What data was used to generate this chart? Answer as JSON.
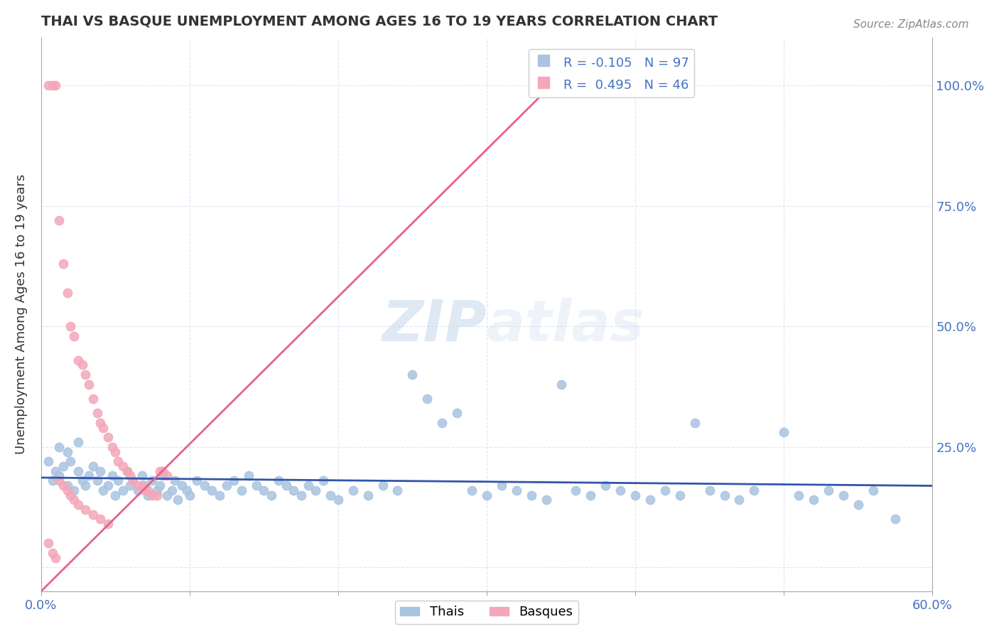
{
  "title": "THAI VS BASQUE UNEMPLOYMENT AMONG AGES 16 TO 19 YEARS CORRELATION CHART",
  "source": "Source: ZipAtlas.com",
  "ylabel": "Unemployment Among Ages 16 to 19 years",
  "yticks": [
    0.0,
    0.25,
    0.5,
    0.75,
    1.0
  ],
  "ytick_labels": [
    "",
    "25.0%",
    "50.0%",
    "75.0%",
    "100.0%"
  ],
  "xlim": [
    0.0,
    0.6
  ],
  "ylim": [
    -0.05,
    1.1
  ],
  "thai_color": "#a8c4e0",
  "basque_color": "#f4a7b9",
  "thai_line_color": "#3355aa",
  "basque_line_color": "#e8608a",
  "thai_R": -0.105,
  "thai_N": 97,
  "basque_R": 0.495,
  "basque_N": 46,
  "watermark_zip": "ZIP",
  "watermark_atlas": "atlas",
  "thai_points": [
    [
      0.005,
      0.22
    ],
    [
      0.008,
      0.18
    ],
    [
      0.01,
      0.2
    ],
    [
      0.012,
      0.19
    ],
    [
      0.015,
      0.21
    ],
    [
      0.018,
      0.17
    ],
    [
      0.02,
      0.22
    ],
    [
      0.022,
      0.16
    ],
    [
      0.025,
      0.2
    ],
    [
      0.028,
      0.18
    ],
    [
      0.03,
      0.17
    ],
    [
      0.032,
      0.19
    ],
    [
      0.035,
      0.21
    ],
    [
      0.038,
      0.18
    ],
    [
      0.04,
      0.2
    ],
    [
      0.042,
      0.16
    ],
    [
      0.045,
      0.17
    ],
    [
      0.048,
      0.19
    ],
    [
      0.05,
      0.15
    ],
    [
      0.052,
      0.18
    ],
    [
      0.055,
      0.16
    ],
    [
      0.058,
      0.2
    ],
    [
      0.06,
      0.17
    ],
    [
      0.062,
      0.18
    ],
    [
      0.065,
      0.16
    ],
    [
      0.068,
      0.19
    ],
    [
      0.07,
      0.17
    ],
    [
      0.072,
      0.15
    ],
    [
      0.075,
      0.18
    ],
    [
      0.078,
      0.16
    ],
    [
      0.08,
      0.17
    ],
    [
      0.082,
      0.19
    ],
    [
      0.085,
      0.15
    ],
    [
      0.088,
      0.16
    ],
    [
      0.09,
      0.18
    ],
    [
      0.092,
      0.14
    ],
    [
      0.095,
      0.17
    ],
    [
      0.098,
      0.16
    ],
    [
      0.1,
      0.15
    ],
    [
      0.105,
      0.18
    ],
    [
      0.11,
      0.17
    ],
    [
      0.115,
      0.16
    ],
    [
      0.12,
      0.15
    ],
    [
      0.125,
      0.17
    ],
    [
      0.13,
      0.18
    ],
    [
      0.135,
      0.16
    ],
    [
      0.14,
      0.19
    ],
    [
      0.145,
      0.17
    ],
    [
      0.15,
      0.16
    ],
    [
      0.155,
      0.15
    ],
    [
      0.16,
      0.18
    ],
    [
      0.165,
      0.17
    ],
    [
      0.17,
      0.16
    ],
    [
      0.175,
      0.15
    ],
    [
      0.18,
      0.17
    ],
    [
      0.185,
      0.16
    ],
    [
      0.19,
      0.18
    ],
    [
      0.195,
      0.15
    ],
    [
      0.2,
      0.14
    ],
    [
      0.21,
      0.16
    ],
    [
      0.22,
      0.15
    ],
    [
      0.23,
      0.17
    ],
    [
      0.24,
      0.16
    ],
    [
      0.25,
      0.4
    ],
    [
      0.26,
      0.35
    ],
    [
      0.27,
      0.3
    ],
    [
      0.28,
      0.32
    ],
    [
      0.29,
      0.16
    ],
    [
      0.3,
      0.15
    ],
    [
      0.31,
      0.17
    ],
    [
      0.32,
      0.16
    ],
    [
      0.33,
      0.15
    ],
    [
      0.34,
      0.14
    ],
    [
      0.35,
      0.38
    ],
    [
      0.36,
      0.16
    ],
    [
      0.37,
      0.15
    ],
    [
      0.38,
      0.17
    ],
    [
      0.39,
      0.16
    ],
    [
      0.4,
      0.15
    ],
    [
      0.41,
      0.14
    ],
    [
      0.42,
      0.16
    ],
    [
      0.43,
      0.15
    ],
    [
      0.44,
      0.3
    ],
    [
      0.45,
      0.16
    ],
    [
      0.46,
      0.15
    ],
    [
      0.47,
      0.14
    ],
    [
      0.48,
      0.16
    ],
    [
      0.5,
      0.28
    ],
    [
      0.51,
      0.15
    ],
    [
      0.52,
      0.14
    ],
    [
      0.53,
      0.16
    ],
    [
      0.54,
      0.15
    ],
    [
      0.55,
      0.13
    ],
    [
      0.56,
      0.16
    ],
    [
      0.575,
      0.1
    ],
    [
      0.012,
      0.25
    ],
    [
      0.018,
      0.24
    ],
    [
      0.025,
      0.26
    ]
  ],
  "basque_points": [
    [
      0.005,
      1.0
    ],
    [
      0.008,
      1.0
    ],
    [
      0.01,
      1.0
    ],
    [
      0.012,
      0.72
    ],
    [
      0.015,
      0.63
    ],
    [
      0.018,
      0.57
    ],
    [
      0.02,
      0.5
    ],
    [
      0.022,
      0.48
    ],
    [
      0.025,
      0.43
    ],
    [
      0.028,
      0.42
    ],
    [
      0.03,
      0.4
    ],
    [
      0.032,
      0.38
    ],
    [
      0.035,
      0.35
    ],
    [
      0.038,
      0.32
    ],
    [
      0.04,
      0.3
    ],
    [
      0.042,
      0.29
    ],
    [
      0.045,
      0.27
    ],
    [
      0.048,
      0.25
    ],
    [
      0.05,
      0.24
    ],
    [
      0.052,
      0.22
    ],
    [
      0.055,
      0.21
    ],
    [
      0.058,
      0.2
    ],
    [
      0.06,
      0.19
    ],
    [
      0.062,
      0.18
    ],
    [
      0.065,
      0.17
    ],
    [
      0.068,
      0.17
    ],
    [
      0.07,
      0.16
    ],
    [
      0.072,
      0.16
    ],
    [
      0.075,
      0.15
    ],
    [
      0.078,
      0.15
    ],
    [
      0.08,
      0.2
    ],
    [
      0.082,
      0.2
    ],
    [
      0.085,
      0.19
    ],
    [
      0.005,
      0.05
    ],
    [
      0.008,
      0.03
    ],
    [
      0.01,
      0.02
    ],
    [
      0.012,
      0.18
    ],
    [
      0.015,
      0.17
    ],
    [
      0.018,
      0.16
    ],
    [
      0.02,
      0.15
    ],
    [
      0.022,
      0.14
    ],
    [
      0.025,
      0.13
    ],
    [
      0.03,
      0.12
    ],
    [
      0.035,
      0.11
    ],
    [
      0.04,
      0.1
    ],
    [
      0.045,
      0.09
    ]
  ],
  "basque_trend_x": [
    0.0,
    0.35
  ],
  "basque_trend_y": [
    -0.05,
    1.02
  ]
}
